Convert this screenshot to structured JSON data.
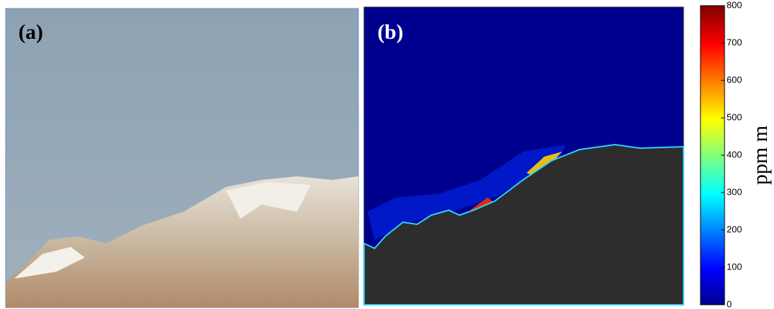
{
  "panels": [
    {
      "label": "(a)"
    },
    {
      "label": "(b)"
    }
  ],
  "colorbar": {
    "label": "ppm m",
    "lim": [
      0,
      800
    ],
    "ticks": [
      0,
      100,
      200,
      300,
      400,
      500,
      600,
      700,
      800
    ]
  }
}
